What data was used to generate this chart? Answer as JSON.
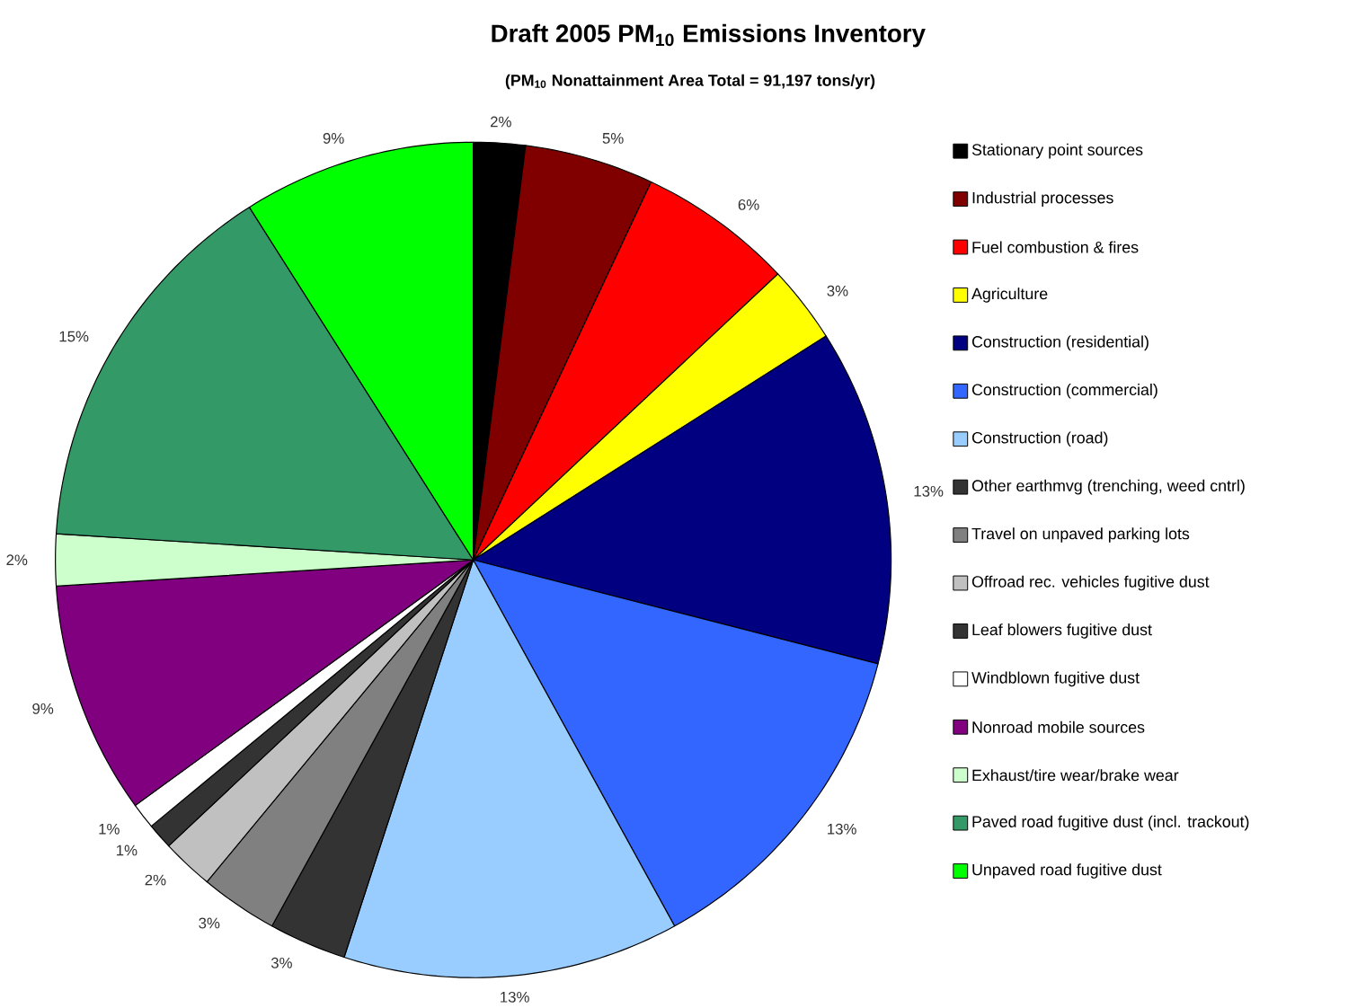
{
  "chart_data": {
    "type": "pie",
    "title": "Draft 2005 PM$_{10}$ Emissions Inventory",
    "subtitle": "(PM$_{10}$ Nonattainment Area Total = 91,197 tons/yr)",
    "categories": [
      "Stationary point sources",
      "Industrial processes",
      "Fuel combustion & fires",
      "Agriculture",
      "Construction (residential)",
      "Construction (commercial)",
      "Construction (road)",
      "Other earthmvg (trenching, weed cntrl)",
      "Travel on unpaved parking lots",
      "Offroad rec. vehicles fugitive dust",
      "Leaf blowers fugitive dust",
      "Windblown fugitive dust",
      "Nonroad mobile sources",
      "Exhaust/tire wear/brake wear",
      "Paved road fugitive dust (incl. trackout)",
      "Unpaved road fugitive dust"
    ],
    "values": [
      2,
      5,
      6,
      3,
      13,
      13,
      13,
      3,
      3,
      2,
      1,
      1,
      9,
      2,
      15,
      9
    ],
    "value_labels": [
      "2%",
      "5%",
      "6%",
      "3%",
      "13%",
      "13%",
      "13%",
      "3%",
      "3%",
      "2%",
      "1%",
      "1%",
      "9%",
      "2%",
      "15%",
      "9%"
    ],
    "colors": [
      "#000000",
      "#800000",
      "#ff0000",
      "#ffff00",
      "#000080",
      "#3366ff",
      "#99ccff",
      "#333333",
      "#808080",
      "#c0c0c0",
      "#333333",
      "#ffffff",
      "#800080",
      "#ccffcc",
      "#339966",
      "#00ff00"
    ],
    "legend": "right"
  }
}
